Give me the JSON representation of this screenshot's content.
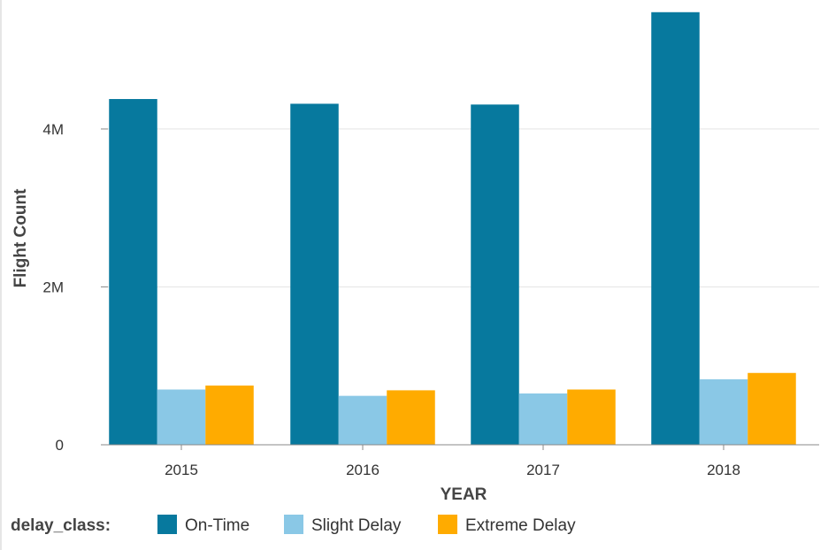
{
  "chart_data": {
    "type": "bar",
    "title": "",
    "xlabel": "YEAR",
    "ylabel": "Flight Count",
    "categories": [
      "2015",
      "2016",
      "2017",
      "2018"
    ],
    "ylim": [
      0,
      5500000
    ],
    "yticks": [
      {
        "value": 0,
        "label": "0"
      },
      {
        "value": 2000000,
        "label": "2M"
      },
      {
        "value": 4000000,
        "label": "4M"
      }
    ],
    "grid": true,
    "legend": {
      "title": "delay_class:",
      "position": "bottom-left"
    },
    "series": [
      {
        "name": "On-Time",
        "color": "#07799e",
        "values": [
          4380000,
          4320000,
          4310000,
          5480000
        ]
      },
      {
        "name": "Slight Delay",
        "color": "#8ac8e6",
        "values": [
          700000,
          620000,
          650000,
          830000
        ]
      },
      {
        "name": "Extreme Delay",
        "color": "#ffab00",
        "values": [
          750000,
          690000,
          700000,
          910000
        ]
      }
    ]
  }
}
